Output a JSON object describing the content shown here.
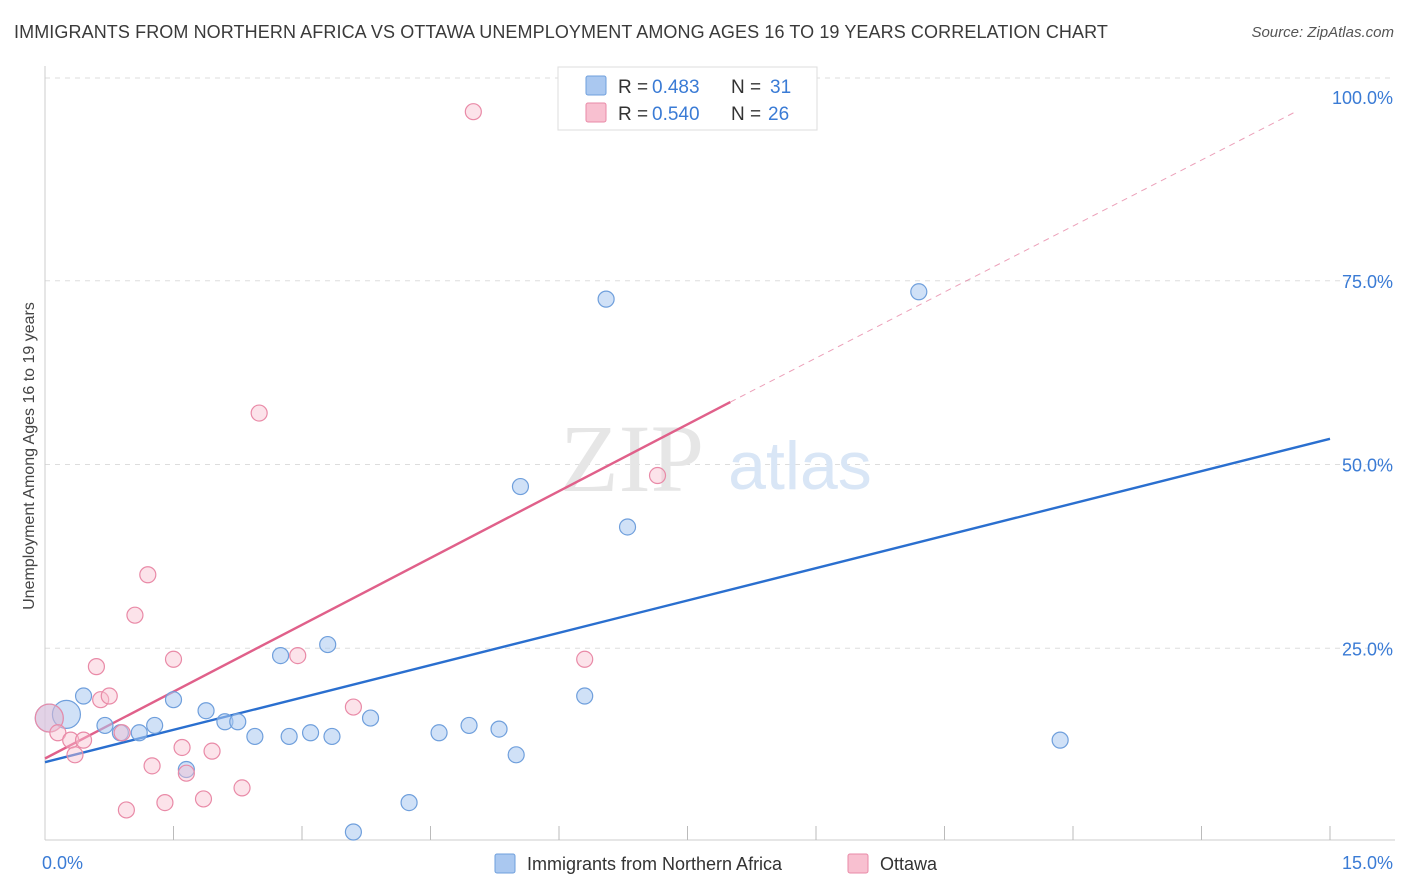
{
  "header": {
    "title": "IMMIGRANTS FROM NORTHERN AFRICA VS OTTAWA UNEMPLOYMENT AMONG AGES 16 TO 19 YEARS CORRELATION CHART",
    "source": "Source: ZipAtlas.com"
  },
  "watermark": {
    "zip": "ZIP",
    "atlas": "atlas"
  },
  "colors": {
    "blue_fill": "#aac8f0",
    "blue_stroke": "#6f9fdc",
    "blue_line": "#2a6fcf",
    "pink_fill": "#f8c0d0",
    "pink_stroke": "#e98aa7",
    "pink_line": "#e0608a",
    "axis_label": "#3a7bd5",
    "grid": "#dddddd"
  },
  "legend": {
    "entries": [
      {
        "r_label": "R =",
        "r_value": "0.483",
        "n_label": "N =",
        "n_value": "31"
      },
      {
        "r_label": "R =",
        "r_value": "0.540",
        "n_label": "N =",
        "n_value": "26"
      }
    ]
  },
  "chart_data": {
    "type": "scatter",
    "title": "IMMIGRANTS FROM NORTHERN AFRICA VS OTTAWA UNEMPLOYMENT AMONG AGES 16 TO 19 YEARS CORRELATION CHART",
    "xlabel": "",
    "ylabel": "Unemployment Among Ages 16 to 19 years",
    "xlim": [
      0,
      15
    ],
    "ylim": [
      0,
      100
    ],
    "x_tick_labels": [
      {
        "value": 0,
        "label": "0.0%"
      },
      {
        "value": 15,
        "label": "15.0%"
      }
    ],
    "y_tick_labels": [
      {
        "value": 25,
        "label": "25.0%"
      },
      {
        "value": 50,
        "label": "50.0%"
      },
      {
        "value": 75,
        "label": "75.0%"
      },
      {
        "value": 100,
        "label": "100.0%"
      }
    ],
    "legend_position": "top-center",
    "series": [
      {
        "name": "Immigrants from Northern Africa",
        "color": "blue",
        "points": [
          {
            "x": 0.05,
            "y": 15.5,
            "big": true
          },
          {
            "x": 0.25,
            "y": 16.0,
            "big": true
          },
          {
            "x": 0.45,
            "y": 18.5
          },
          {
            "x": 0.7,
            "y": 14.5
          },
          {
            "x": 0.88,
            "y": 13.5
          },
          {
            "x": 1.1,
            "y": 13.5
          },
          {
            "x": 1.28,
            "y": 14.5
          },
          {
            "x": 1.5,
            "y": 18.0
          },
          {
            "x": 1.65,
            "y": 8.5
          },
          {
            "x": 1.88,
            "y": 16.5
          },
          {
            "x": 2.1,
            "y": 15.0
          },
          {
            "x": 2.25,
            "y": 15.0
          },
          {
            "x": 2.45,
            "y": 13.0
          },
          {
            "x": 2.75,
            "y": 24.0
          },
          {
            "x": 2.85,
            "y": 13.0
          },
          {
            "x": 3.1,
            "y": 13.5
          },
          {
            "x": 3.3,
            "y": 25.5
          },
          {
            "x": 3.35,
            "y": 13.0
          },
          {
            "x": 3.6,
            "y": 0.0
          },
          {
            "x": 3.8,
            "y": 15.5
          },
          {
            "x": 4.25,
            "y": 4.0
          },
          {
            "x": 4.6,
            "y": 13.5
          },
          {
            "x": 4.95,
            "y": 14.5
          },
          {
            "x": 5.3,
            "y": 14.0
          },
          {
            "x": 5.5,
            "y": 10.5
          },
          {
            "x": 5.55,
            "y": 47.0
          },
          {
            "x": 6.3,
            "y": 18.5
          },
          {
            "x": 6.55,
            "y": 72.5
          },
          {
            "x": 6.8,
            "y": 41.5
          },
          {
            "x": 10.2,
            "y": 73.5
          },
          {
            "x": 11.85,
            "y": 12.5
          }
        ],
        "trend": {
          "x1": 0,
          "y1": 9.5,
          "x2": 15,
          "y2": 53.5,
          "dashed_to": null
        }
      },
      {
        "name": "Ottawa",
        "color": "pink",
        "points": [
          {
            "x": 0.05,
            "y": 15.5,
            "big": true
          },
          {
            "x": 0.15,
            "y": 13.5
          },
          {
            "x": 0.3,
            "y": 12.5
          },
          {
            "x": 0.35,
            "y": 10.5
          },
          {
            "x": 0.45,
            "y": 12.5
          },
          {
            "x": 0.6,
            "y": 22.5
          },
          {
            "x": 0.65,
            "y": 18.0
          },
          {
            "x": 0.75,
            "y": 18.5
          },
          {
            "x": 0.9,
            "y": 13.5
          },
          {
            "x": 0.95,
            "y": 3.0
          },
          {
            "x": 1.05,
            "y": 29.5
          },
          {
            "x": 1.2,
            "y": 35.0
          },
          {
            "x": 1.25,
            "y": 9.0
          },
          {
            "x": 1.4,
            "y": 4.0
          },
          {
            "x": 1.5,
            "y": 23.5
          },
          {
            "x": 1.6,
            "y": 11.5
          },
          {
            "x": 1.65,
            "y": 8.0
          },
          {
            "x": 1.85,
            "y": 4.5
          },
          {
            "x": 1.95,
            "y": 11.0
          },
          {
            "x": 2.3,
            "y": 6.0
          },
          {
            "x": 2.5,
            "y": 57.0
          },
          {
            "x": 2.95,
            "y": 24.0
          },
          {
            "x": 3.6,
            "y": 17.0
          },
          {
            "x": 5.0,
            "y": 98.0
          },
          {
            "x": 6.3,
            "y": 23.5
          },
          {
            "x": 7.15,
            "y": 48.5
          }
        ],
        "trend": {
          "x1": 0,
          "y1": 10.0,
          "x2": 8.0,
          "y2": 58.5,
          "dashed_to": {
            "x": 14.6,
            "y": 98.0
          }
        }
      }
    ]
  },
  "bottom_legend": {
    "items": [
      {
        "label": "Immigrants from Northern Africa"
      },
      {
        "label": "Ottawa"
      }
    ]
  }
}
